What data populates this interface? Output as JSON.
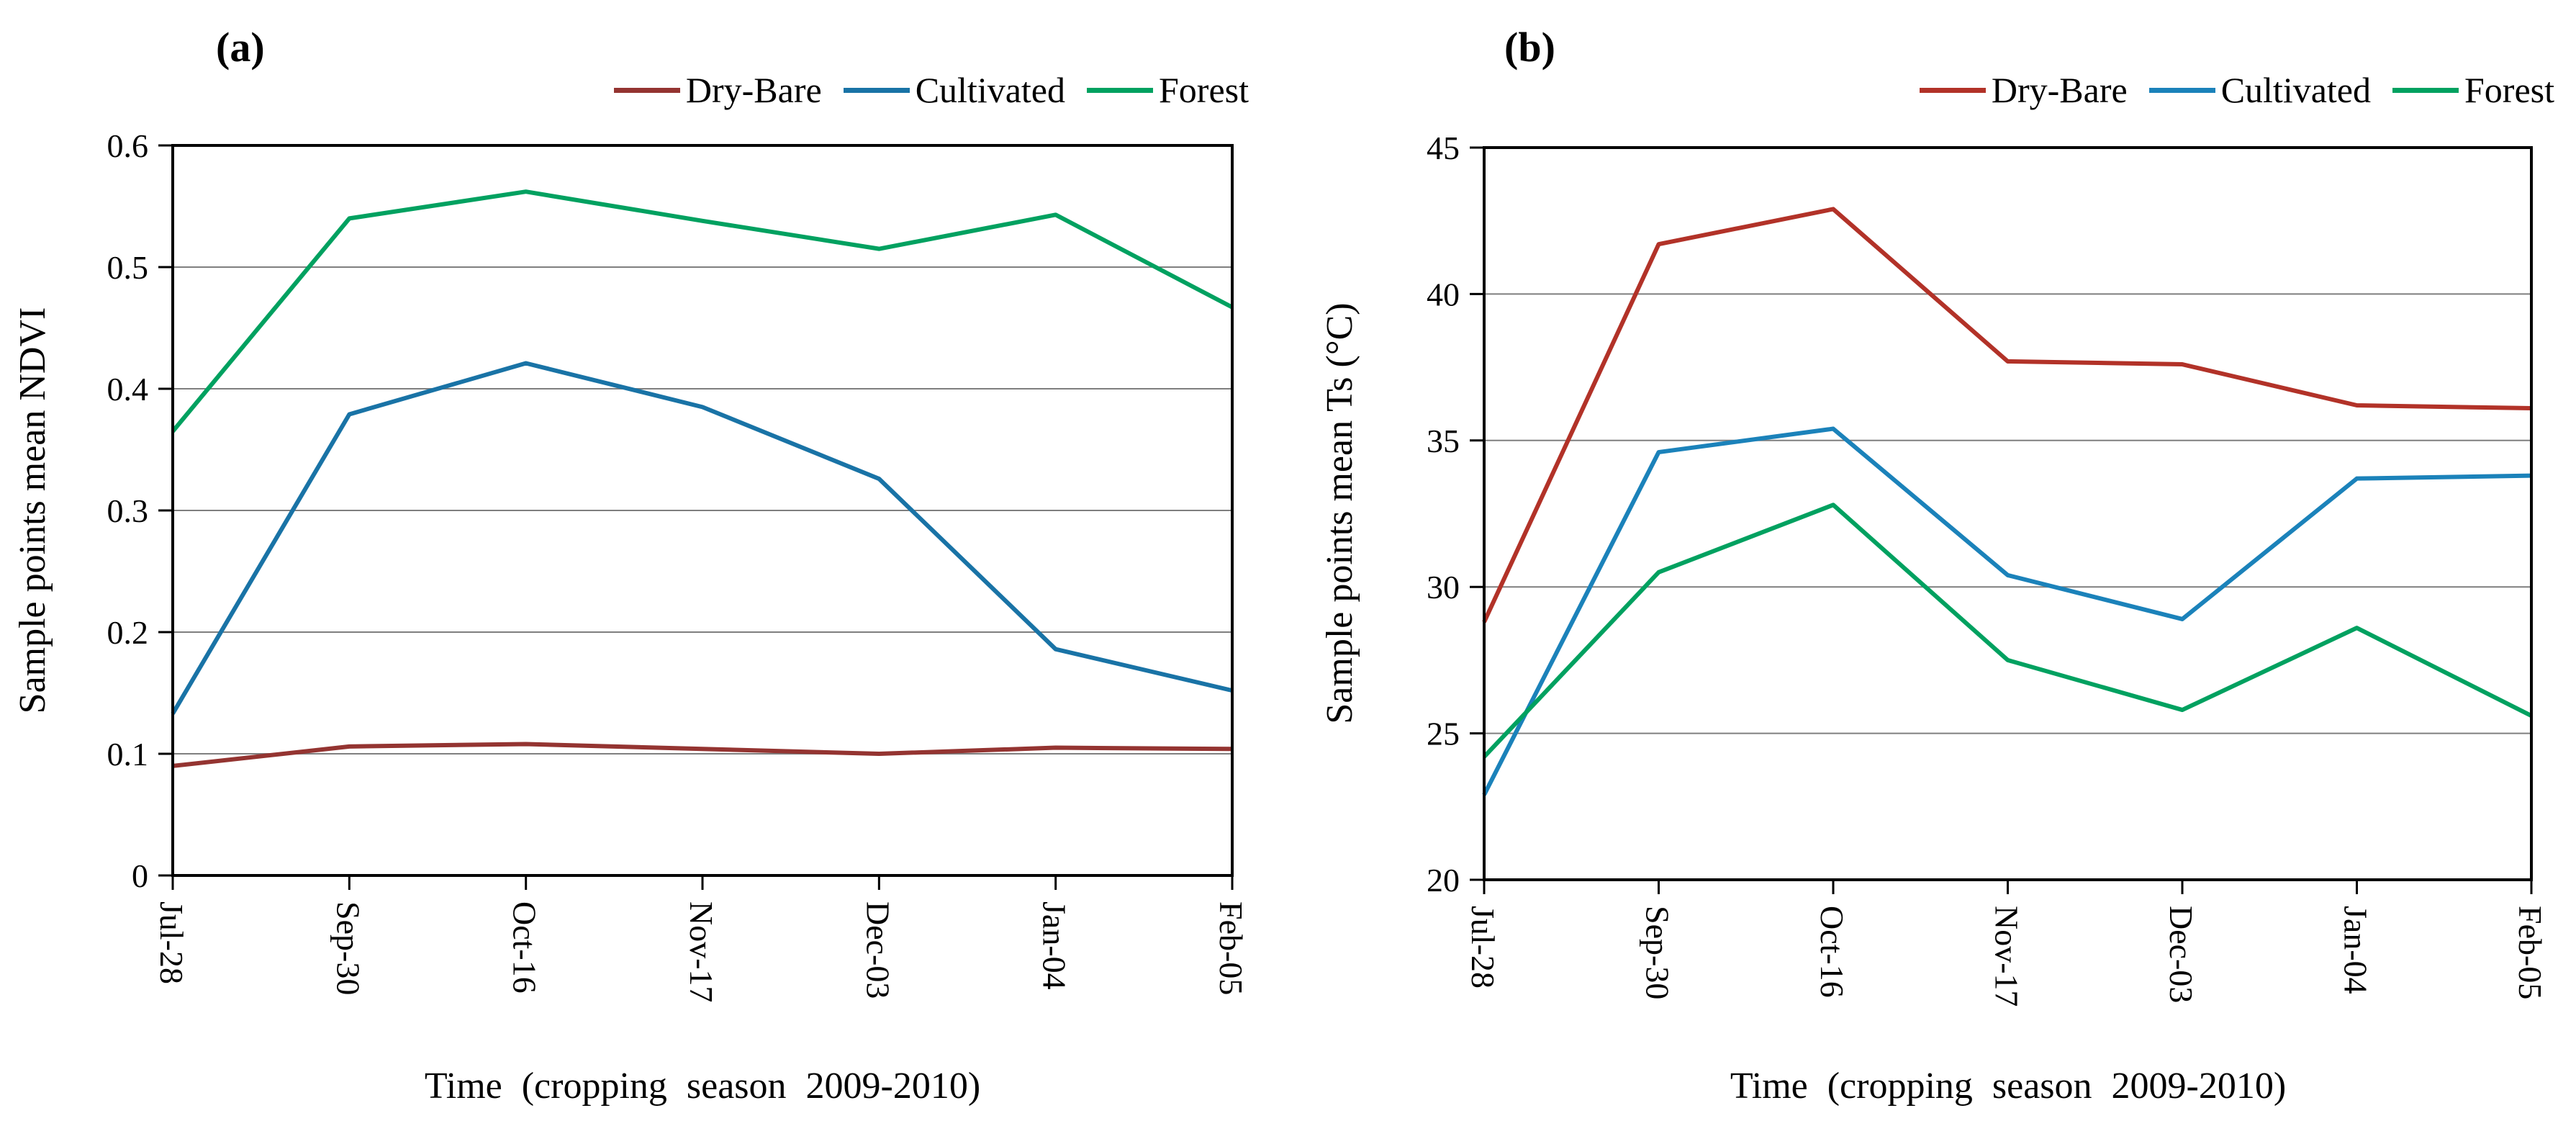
{
  "chart_data": [
    {
      "type": "line",
      "panel_label": "(a)",
      "xlabel": "Time (cropping season 2009-2010)",
      "ylabel": "Sample points mean NDVI",
      "categories": [
        "Jul-28",
        "Sep-30",
        "Oct-16",
        "Nov-17",
        "Dec-03",
        "Jan-04",
        "Feb-05"
      ],
      "ylim": [
        0,
        0.6
      ],
      "yticks": [
        0,
        0.1,
        0.2,
        0.3,
        0.4,
        0.5,
        0.6
      ],
      "ytick_labels": [
        "0",
        "0.1",
        "0.2",
        "0.3",
        "0.4",
        "0.5",
        "0.6"
      ],
      "grid": true,
      "legend_position": "top-right",
      "grid_color": "#7f7f7f",
      "series": [
        {
          "name": "Dry-Bare",
          "color": "#943431",
          "values": [
            0.09,
            0.106,
            0.108,
            0.104,
            0.1,
            0.105,
            0.104
          ]
        },
        {
          "name": "Cultivated",
          "color": "#1973a6",
          "values": [
            0.133,
            0.379,
            0.421,
            0.385,
            0.326,
            0.186,
            0.152
          ]
        },
        {
          "name": "Forest",
          "color": "#00a160",
          "values": [
            0.365,
            0.54,
            0.562,
            0.538,
            0.515,
            0.543,
            0.467
          ]
        }
      ]
    },
    {
      "type": "line",
      "panel_label": "(b)",
      "xlabel": "Time (cropping season 2009-2010)",
      "ylabel": "Sample points mean Ts (°C)",
      "categories": [
        "Jul-28",
        "Sep-30",
        "Oct-16",
        "Nov-17",
        "Dec-03",
        "Jan-04",
        "Feb-05"
      ],
      "ylim": [
        20,
        45
      ],
      "yticks": [
        20,
        25,
        30,
        35,
        40,
        45
      ],
      "ytick_labels": [
        "20",
        "25",
        "30",
        "35",
        "40",
        "45"
      ],
      "grid": true,
      "legend_position": "top-right",
      "grid_color": "#7f7f7f",
      "series": [
        {
          "name": "Dry-Bare",
          "color": "#b23228",
          "values": [
            28.8,
            41.7,
            42.9,
            37.7,
            37.6,
            36.2,
            36.1
          ]
        },
        {
          "name": "Cultivated",
          "color": "#1b82ba",
          "values": [
            22.9,
            34.6,
            35.4,
            30.4,
            28.9,
            33.7,
            33.8
          ]
        },
        {
          "name": "Forest",
          "color": "#00a160",
          "values": [
            24.2,
            30.5,
            32.8,
            27.5,
            25.8,
            28.6,
            25.6
          ]
        }
      ]
    }
  ]
}
